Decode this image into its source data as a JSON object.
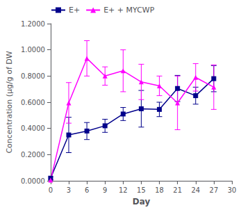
{
  "chart_data": {
    "type": "line",
    "xlabel": "Day",
    "ylabel": "Concentration (µg/g of DW",
    "x": [
      0,
      3,
      6,
      9,
      12,
      15,
      18,
      21,
      24,
      27
    ],
    "series": [
      {
        "name": "E+",
        "color": "#00008B",
        "marker": "square",
        "values": [
          0.02,
          0.35,
          0.38,
          0.42,
          0.51,
          0.55,
          0.545,
          0.705,
          0.65,
          0.78
        ],
        "errors": [
          0.01,
          0.135,
          0.065,
          0.05,
          0.05,
          0.14,
          0.055,
          0.1,
          0.065,
          0.1
        ]
      },
      {
        "name": "E+ + MYCWP",
        "color": "#FF00FF",
        "marker": "triangle",
        "values": [
          0.005,
          0.595,
          0.935,
          0.8,
          0.84,
          0.755,
          0.725,
          0.595,
          0.79,
          0.715
        ],
        "errors": [
          0.005,
          0.155,
          0.135,
          0.07,
          0.16,
          0.135,
          0.075,
          0.205,
          0.105,
          0.17
        ]
      }
    ],
    "xlim": [
      0,
      30
    ],
    "xticks": [
      0,
      3,
      6,
      9,
      12,
      15,
      18,
      21,
      24,
      27,
      30
    ],
    "ylim": [
      0,
      1.2
    ],
    "yticks": [
      {
        "value": 0.0,
        "label": "0.0000"
      },
      {
        "value": 0.2,
        "label": "0.2000"
      },
      {
        "value": 0.4,
        "label": "0.4000"
      },
      {
        "value": 0.6,
        "label": "0.6000"
      },
      {
        "value": 0.8,
        "label": "0.8000"
      },
      {
        "value": 1.0,
        "label": "1.0000"
      },
      {
        "value": 1.2,
        "label": "1.2000"
      }
    ],
    "grid": false,
    "legend": "upper left"
  }
}
